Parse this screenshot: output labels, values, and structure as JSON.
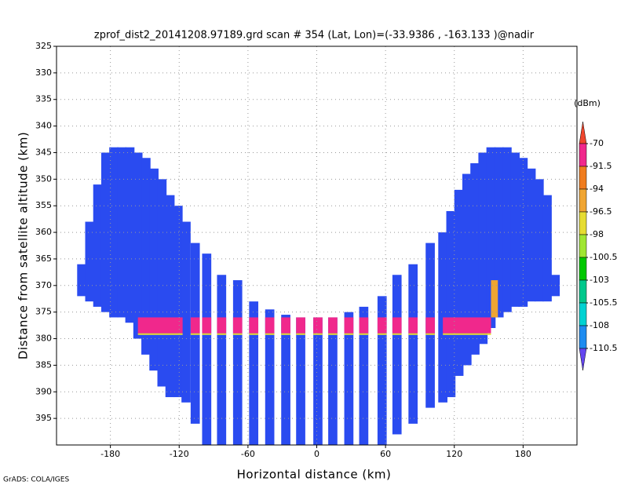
{
  "chart_data": {
    "type": "radar-section",
    "title": "zprof_dist2_20141208.97189.grd  scan # 354  (Lat, Lon)=(-33.9386 , -163.133 )@nadir",
    "xlabel": "Horizontal distance (km)",
    "ylabel": "Distance from satellite altitude (km)",
    "footer": "GrADS: COLA/IGES",
    "xlim": [
      -227,
      227
    ],
    "ylim": [
      325,
      400
    ],
    "y_inverted": true,
    "xticks": [
      -180,
      -120,
      -60,
      0,
      60,
      120,
      180
    ],
    "yticks": [
      325,
      330,
      335,
      340,
      345,
      350,
      355,
      360,
      365,
      370,
      375,
      380,
      385,
      390,
      395
    ],
    "grid": true,
    "colorbar": {
      "unit": "(dBm)",
      "levels": [
        -70,
        -91.5,
        -94,
        -96.5,
        -98,
        -100.5,
        -103,
        -105.5,
        -108,
        -110.5
      ],
      "colors": [
        "#f0462d",
        "#f0288c",
        "#f07c1e",
        "#f0a532",
        "#e6dc32",
        "#a0e632",
        "#00c800",
        "#00c88c",
        "#00d2d2",
        "#1e8cf0",
        "#6446f0"
      ]
    },
    "columns": {
      "color": "#2a4bf0",
      "width": 8,
      "x": [
        -205,
        -198,
        -191,
        -184,
        -177,
        -170,
        -163,
        -156,
        -149,
        -142,
        -135,
        -128,
        -121,
        -114,
        -106,
        -96,
        -83,
        -69,
        -55,
        -41,
        -27,
        -14,
        1,
        14,
        28,
        41,
        57,
        70,
        84,
        99,
        110,
        117,
        124,
        131,
        138,
        145,
        152,
        159,
        166,
        173,
        180,
        187,
        194,
        201,
        208
      ],
      "top": [
        366,
        358,
        351,
        345,
        344,
        344,
        344,
        345,
        346,
        348,
        350,
        353,
        355,
        358,
        362,
        364,
        368,
        369,
        373,
        374.5,
        375.5,
        376,
        376,
        376,
        375,
        374,
        372,
        368,
        366,
        362,
        360,
        356,
        352,
        349,
        347,
        345,
        344,
        344,
        344,
        345,
        346,
        348,
        350,
        353,
        368
      ],
      "bottom": [
        372,
        373,
        374,
        375,
        376,
        376,
        377,
        380,
        383,
        386,
        389,
        391,
        391,
        392,
        396,
        400,
        400,
        400,
        400,
        400,
        400,
        400,
        400,
        400,
        400,
        400,
        400,
        398,
        396,
        393,
        392,
        391,
        387,
        385,
        383,
        381,
        378,
        376,
        375,
        374,
        374,
        373,
        373,
        373,
        372
      ]
    },
    "bright_band": {
      "color": "#f0288c",
      "top": 376,
      "bottom": 379,
      "x_start": [
        -156,
        -110,
        -100,
        -87,
        -73,
        -59,
        -45,
        -31,
        -18,
        -3,
        10,
        24,
        37,
        53,
        66,
        80,
        95,
        110
      ],
      "x_end": [
        -117,
        -102,
        -92,
        -79,
        -65,
        -51,
        -37,
        -23,
        -10,
        5,
        18,
        32,
        45,
        61,
        74,
        88,
        103,
        152
      ]
    },
    "cells": {
      "color": "#f0a532",
      "x_start": [
        152
      ],
      "x_end": [
        158
      ],
      "top": [
        369
      ],
      "bottom": [
        376
      ]
    }
  }
}
